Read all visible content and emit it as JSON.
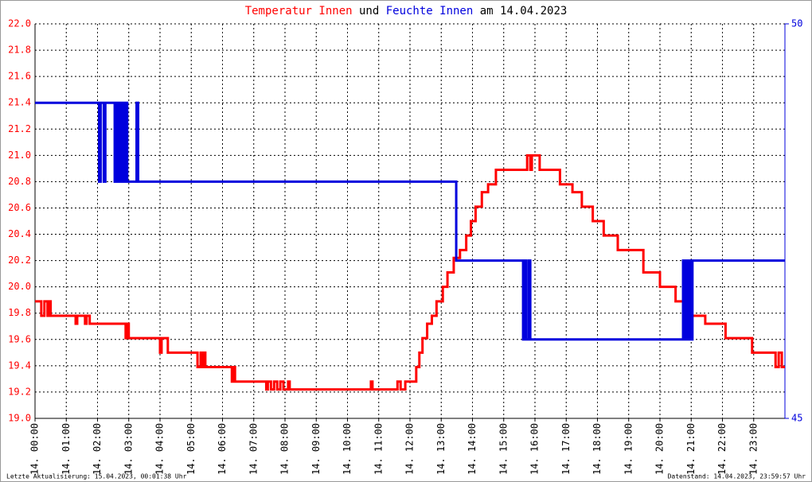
{
  "chart_data": {
    "type": "step",
    "title_join": "und",
    "title_date": "am 14.04.2023",
    "footer_left": "Letzte Aktualisierung: 15.04.2023, 00:01:38 Uhr",
    "footer_right": "Datenstand: 14.04.2023, 23:59:57 Uhr",
    "xlim": [
      0,
      24
    ],
    "xticks": [
      {
        "value": 0,
        "label": "14. 00:00"
      },
      {
        "value": 1,
        "label": "14. 01:00"
      },
      {
        "value": 2,
        "label": "14. 02:00"
      },
      {
        "value": 3,
        "label": "14. 03:00"
      },
      {
        "value": 4,
        "label": "14. 04:00"
      },
      {
        "value": 5,
        "label": "14. 05:00"
      },
      {
        "value": 6,
        "label": "14. 06:00"
      },
      {
        "value": 7,
        "label": "14. 07:00"
      },
      {
        "value": 8,
        "label": "14. 08:00"
      },
      {
        "value": 9,
        "label": "14. 09:00"
      },
      {
        "value": 10,
        "label": "14. 10:00"
      },
      {
        "value": 11,
        "label": "14. 11:00"
      },
      {
        "value": 12,
        "label": "14. 12:00"
      },
      {
        "value": 13,
        "label": "14. 13:00"
      },
      {
        "value": 14,
        "label": "14. 14:00"
      },
      {
        "value": 15,
        "label": "14. 15:00"
      },
      {
        "value": 16,
        "label": "14. 16:00"
      },
      {
        "value": 17,
        "label": "14. 17:00"
      },
      {
        "value": 18,
        "label": "14. 18:00"
      },
      {
        "value": 19,
        "label": "14. 19:00"
      },
      {
        "value": 20,
        "label": "14. 20:00"
      },
      {
        "value": 21,
        "label": "14. 21:00"
      },
      {
        "value": 22,
        "label": "14. 22:00"
      },
      {
        "value": 23,
        "label": "14. 23:00"
      }
    ],
    "ylim": [
      19,
      22
    ],
    "yticks": [
      {
        "value": 19,
        "label": "19.0"
      },
      19.2,
      19.4,
      19.6,
      19.8,
      {
        "value": 20,
        "label": "20.0"
      },
      20.2,
      20.4,
      20.6,
      20.8,
      {
        "value": 21,
        "label": "21.0"
      },
      21.2,
      21.4,
      21.6,
      21.8,
      {
        "value": 22,
        "label": "22.0"
      }
    ],
    "y2lim": [
      45,
      50
    ],
    "y2ticks": [
      45,
      50
    ],
    "grid": true,
    "series": [
      {
        "name": "Temperatur Innen",
        "color": "#ff0000",
        "x": [
          0,
          0.2,
          0.3,
          0.4,
          0.45,
          0.5,
          1.3,
          1.35,
          1.6,
          1.65,
          1.75,
          2.9,
          2.95,
          3.0,
          4.0,
          4.05,
          4.25,
          5.2,
          5.3,
          5.35,
          5.4,
          5.45,
          6.3,
          6.35,
          6.4,
          7.4,
          7.45,
          7.55,
          7.65,
          7.75,
          7.85,
          7.95,
          8.1,
          8.15,
          10.75,
          10.8,
          11.6,
          11.7,
          11.85,
          12.2,
          12.3,
          12.4,
          12.55,
          12.7,
          12.85,
          13.05,
          13.2,
          13.4,
          13.6,
          13.8,
          13.95,
          14.1,
          14.3,
          14.5,
          14.75,
          15.75,
          15.85,
          15.9,
          16.15,
          16.8,
          17.2,
          17.5,
          17.85,
          18.2,
          18.65,
          19.47,
          20.0,
          20.5,
          20.85,
          21.45,
          22.1,
          22.95,
          23.7,
          23.8,
          23.9,
          24
        ],
        "values": [
          19.89,
          19.78,
          19.89,
          19.78,
          19.89,
          19.78,
          19.72,
          19.78,
          19.72,
          19.78,
          19.72,
          19.61,
          19.72,
          19.61,
          19.5,
          19.61,
          19.5,
          19.39,
          19.5,
          19.39,
          19.5,
          19.39,
          19.28,
          19.39,
          19.28,
          19.22,
          19.28,
          19.22,
          19.28,
          19.22,
          19.28,
          19.22,
          19.28,
          19.22,
          19.28,
          19.22,
          19.28,
          19.22,
          19.28,
          19.39,
          19.5,
          19.61,
          19.72,
          19.78,
          19.89,
          20.0,
          20.11,
          20.22,
          20.28,
          20.39,
          20.5,
          20.61,
          20.72,
          20.78,
          20.89,
          21.0,
          20.89,
          21.0,
          20.89,
          20.78,
          20.72,
          20.61,
          20.5,
          20.39,
          20.28,
          20.11,
          20.0,
          19.89,
          19.78,
          19.72,
          19.61,
          19.5,
          19.39,
          19.5,
          19.39,
          19.39
        ]
      },
      {
        "name": "Feuchte Innen",
        "color": "#0000dd",
        "axis": "y2",
        "x": [
          0,
          2.05,
          2.1,
          2.2,
          2.25,
          2.55,
          2.6,
          2.65,
          2.7,
          2.75,
          2.8,
          2.85,
          2.9,
          2.95,
          3.25,
          3.3,
          13.48,
          15.62,
          15.67,
          15.72,
          15.8,
          15.85,
          20.74,
          20.79,
          20.84,
          20.89,
          20.94,
          20.99,
          21.04,
          21.1,
          24
        ],
        "values": [
          49,
          48,
          49,
          48,
          49,
          48,
          49,
          48,
          49,
          48,
          49,
          48,
          49,
          48,
          49,
          48,
          47,
          46,
          47,
          46,
          47,
          46,
          47,
          46,
          47,
          46,
          47,
          46,
          47,
          47,
          47
        ]
      }
    ]
  }
}
